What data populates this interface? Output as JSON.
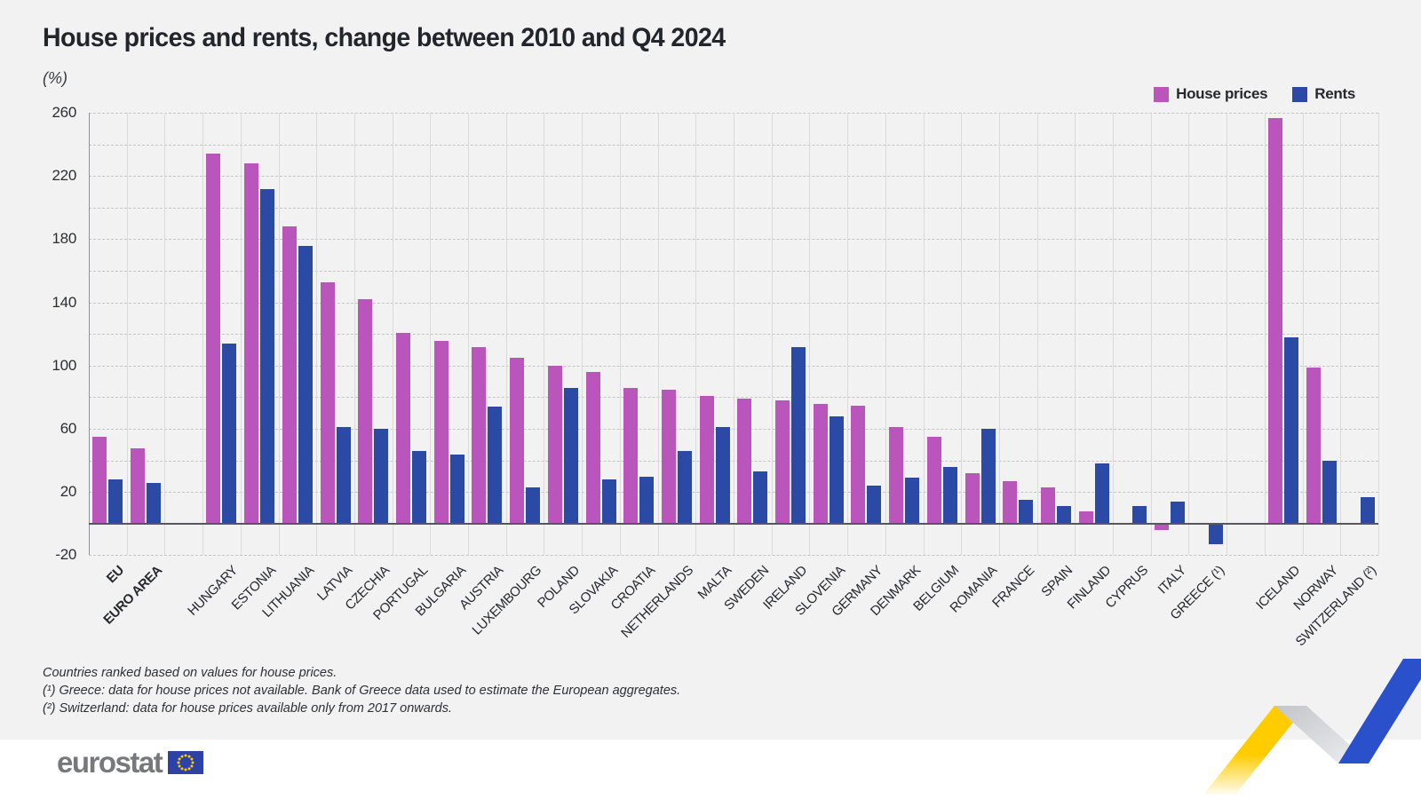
{
  "title": "House prices and rents, change between 2010 and Q4 2024",
  "subtitle": "(%)",
  "legend": {
    "house_label": "House prices",
    "rents_label": "Rents"
  },
  "colors": {
    "house": "#BA55BC",
    "rent": "#2B4AA6",
    "zigzag_yellow": "#FFCC00",
    "zigzag_blue": "#2B50CC",
    "flag_blue": "#2E41A5",
    "star_yellow": "#FFCC00"
  },
  "footnotes": {
    "line1": "Countries ranked based on values for house prices.",
    "line2": "(¹) Greece: data for house prices not available. Bank of Greece data used to estimate the European aggregates.",
    "line3": "(²) Switzerland: data for house prices available only from 2017 onwards."
  },
  "logo_text": "eurostat",
  "chart_data": {
    "type": "bar",
    "unit": "%",
    "ylim": [
      -20,
      260
    ],
    "ytick_values": [
      260,
      220,
      180,
      140,
      100,
      60,
      20,
      -20
    ],
    "grid_step": 20,
    "legend_position": "top-right",
    "series": [
      {
        "name": "House prices",
        "color": "#BA55BC"
      },
      {
        "name": "Rents",
        "color": "#2B4AA6"
      }
    ],
    "groups": [
      {
        "name": "aggregates",
        "bold": true,
        "items": [
          {
            "label": "EU",
            "house": 55,
            "rent": 28
          },
          {
            "label": "EURO AREA",
            "house": 48,
            "rent": 26
          }
        ]
      },
      {
        "name": "eu-countries",
        "bold": false,
        "items": [
          {
            "label": "HUNGARY",
            "house": 234,
            "rent": 114
          },
          {
            "label": "ESTONIA",
            "house": 228,
            "rent": 212
          },
          {
            "label": "LITHUANIA",
            "house": 188,
            "rent": 176
          },
          {
            "label": "LATVIA",
            "house": 153,
            "rent": 61
          },
          {
            "label": "CZECHIA",
            "house": 142,
            "rent": 60
          },
          {
            "label": "PORTUGAL",
            "house": 121,
            "rent": 46
          },
          {
            "label": "BULGARIA",
            "house": 116,
            "rent": 44
          },
          {
            "label": "AUSTRIA",
            "house": 112,
            "rent": 74
          },
          {
            "label": "LUXEMBOURG",
            "house": 105,
            "rent": 23
          },
          {
            "label": "POLAND",
            "house": 100,
            "rent": 86
          },
          {
            "label": "SLOVAKIA",
            "house": 96,
            "rent": 28
          },
          {
            "label": "CROATIA",
            "house": 86,
            "rent": 30
          },
          {
            "label": "NETHERLANDS",
            "house": 85,
            "rent": 46
          },
          {
            "label": "MALTA",
            "house": 81,
            "rent": 61
          },
          {
            "label": "SWEDEN",
            "house": 79,
            "rent": 33
          },
          {
            "label": "IRELAND",
            "house": 78,
            "rent": 112
          },
          {
            "label": "SLOVENIA",
            "house": 76,
            "rent": 68
          },
          {
            "label": "GERMANY",
            "house": 75,
            "rent": 24
          },
          {
            "label": "DENMARK",
            "house": 61,
            "rent": 29
          },
          {
            "label": "BELGIUM",
            "house": 55,
            "rent": 36
          },
          {
            "label": "ROMANIA",
            "house": 32,
            "rent": 60
          },
          {
            "label": "FRANCE",
            "house": 27,
            "rent": 15
          },
          {
            "label": "SPAIN",
            "house": 23,
            "rent": 11
          },
          {
            "label": "FINLAND",
            "house": 8,
            "rent": 38
          },
          {
            "label": "CYPRUS",
            "house": 0,
            "rent": 11
          },
          {
            "label": "ITALY",
            "house": -4,
            "rent": 14
          },
          {
            "label": "GREECE (¹)",
            "house": null,
            "rent": -13
          }
        ]
      },
      {
        "name": "non-eu-countries",
        "bold": false,
        "items": [
          {
            "label": "ICELAND",
            "house": 257,
            "rent": 118
          },
          {
            "label": "NORWAY",
            "house": 99,
            "rent": 40
          },
          {
            "label": "SWITZERLAND (²)",
            "house": null,
            "rent": 17
          }
        ]
      }
    ]
  }
}
